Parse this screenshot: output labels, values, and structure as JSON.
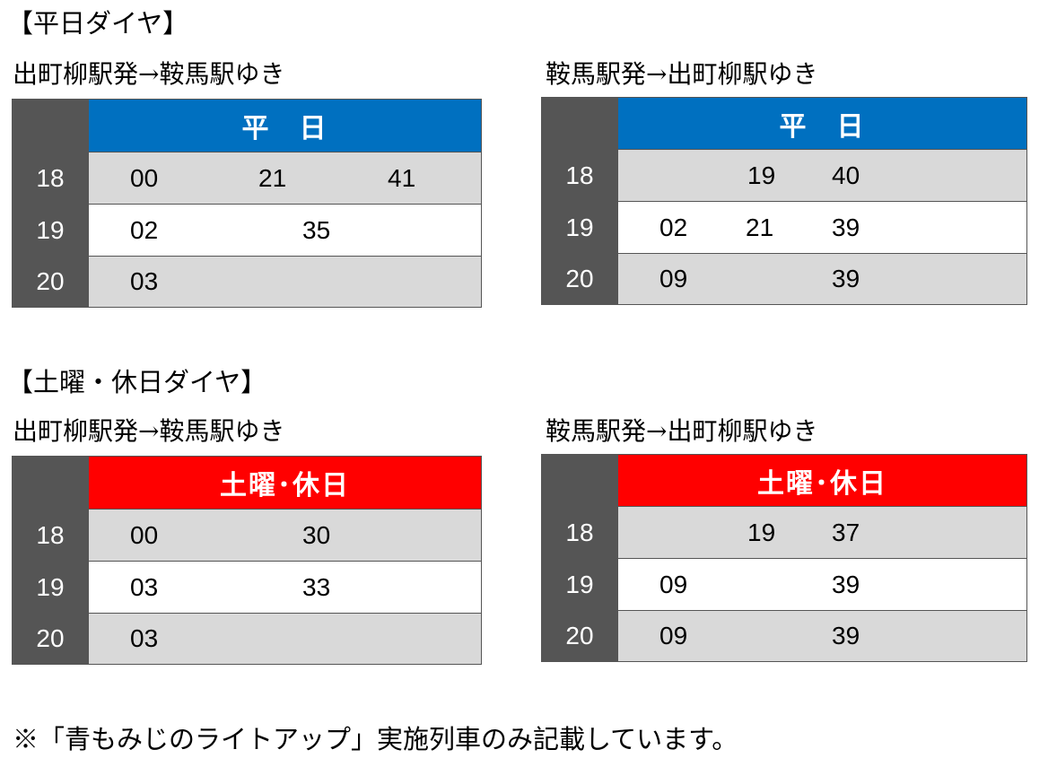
{
  "weekday": {
    "heading": "【平日ダイヤ】",
    "outbound": {
      "route": "出町柳駅発→鞍馬駅ゆき",
      "header": "平　日",
      "header_color": "#0070c0",
      "rows": [
        {
          "hour": "18",
          "minutes": [
            "00",
            "21",
            "41"
          ]
        },
        {
          "hour": "19",
          "minutes": [
            "02",
            "35"
          ]
        },
        {
          "hour": "20",
          "minutes": [
            "03"
          ]
        }
      ]
    },
    "inbound": {
      "route": "鞍馬駅発→出町柳駅ゆき",
      "header": "平　日",
      "header_color": "#0070c0",
      "rows": [
        {
          "hour": "18",
          "minutes": [
            "19",
            "40"
          ]
        },
        {
          "hour": "19",
          "minutes": [
            "02",
            "21",
            "39"
          ]
        },
        {
          "hour": "20",
          "minutes": [
            "09",
            "39"
          ]
        }
      ]
    }
  },
  "holiday": {
    "heading": "【土曜・休日ダイヤ】",
    "outbound": {
      "route": "出町柳駅発→鞍馬駅ゆき",
      "header": "土曜･休日",
      "header_color": "#ff0000",
      "rows": [
        {
          "hour": "18",
          "minutes": [
            "00",
            "30"
          ]
        },
        {
          "hour": "19",
          "minutes": [
            "03",
            "33"
          ]
        },
        {
          "hour": "20",
          "minutes": [
            "03"
          ]
        }
      ]
    },
    "inbound": {
      "route": "鞍馬駅発→出町柳駅ゆき",
      "header": "土曜･休日",
      "header_color": "#ff0000",
      "rows": [
        {
          "hour": "18",
          "minutes": [
            "19",
            "37"
          ]
        },
        {
          "hour": "19",
          "minutes": [
            "09",
            "39"
          ]
        },
        {
          "hour": "20",
          "minutes": [
            "09",
            "39"
          ]
        }
      ]
    }
  },
  "footnote": "※「青もみじのライトアップ」実施列車のみ記載しています。"
}
